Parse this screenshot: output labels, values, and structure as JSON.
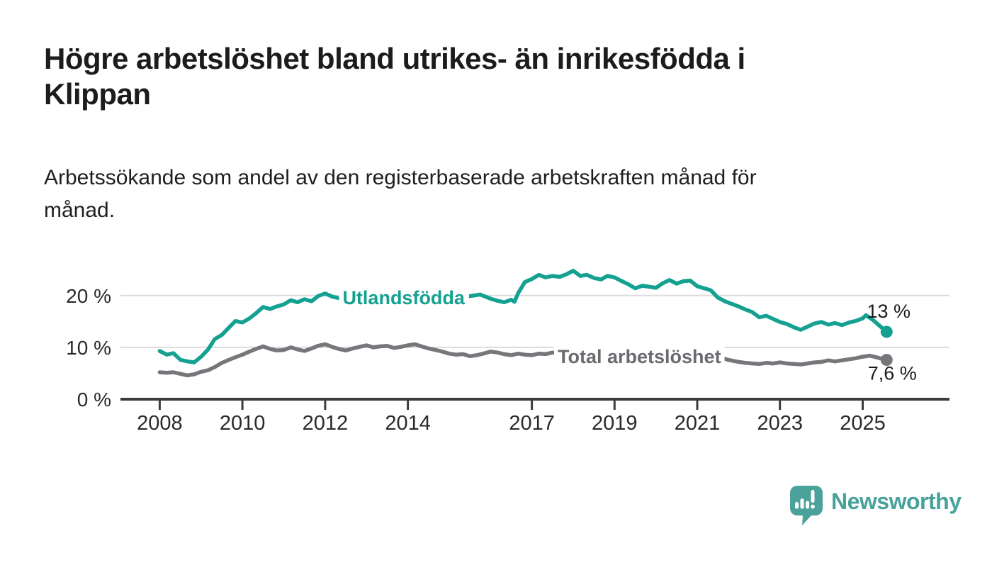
{
  "header": {
    "title_lines": [
      "Högre arbetslöshet bland utrikes- än inrikesfödda i",
      "Klippan"
    ],
    "subtitle_lines": [
      "Arbetssökande som andel av den registerbaserade arbetskraften månad för",
      "månad."
    ]
  },
  "chart_data": {
    "type": "line",
    "title": "Högre arbetslöshet bland utrikes- än inrikesfödda i Klippan",
    "subtitle": "Arbetssökande som andel av den registerbaserade arbetskraften månad för månad.",
    "unit": "%",
    "grid": "horizontal",
    "legend_position": "inline-labels",
    "colors": {
      "grid": "#dcdcdc",
      "axis": "#3c3c3c",
      "tick_text": "#2a2a2a",
      "value_text": "#1c1c1c",
      "background": "#ffffff"
    },
    "x_axis": {
      "range": [
        2007.05,
        2027.1
      ],
      "ticks": [
        2008,
        2010,
        2012,
        2014,
        2017,
        2019,
        2021,
        2023,
        2025
      ],
      "tick_labels": [
        "2008",
        "2010",
        "2012",
        "2014",
        "2017",
        "2019",
        "2021",
        "2023",
        "2025"
      ]
    },
    "y_axis": {
      "range": [
        0,
        26
      ],
      "ticks": [
        0,
        10,
        20
      ],
      "tick_labels": [
        "0 %",
        "10 %",
        "20 %"
      ]
    },
    "series": [
      {
        "name": "Utlandsfödda",
        "color": "#14a191",
        "label": {
          "text": "Utlandsfödda",
          "x": 2013.9,
          "y": 19.6
        },
        "end_value": 13.0,
        "end_label": "13 %",
        "end_label_offset": {
          "dx": 3,
          "dy": -20
        },
        "points": [
          [
            2008.0,
            9.3
          ],
          [
            2008.17,
            8.6
          ],
          [
            2008.33,
            8.9
          ],
          [
            2008.5,
            7.6
          ],
          [
            2008.67,
            7.3
          ],
          [
            2008.83,
            7.1
          ],
          [
            2009.0,
            8.2
          ],
          [
            2009.17,
            9.6
          ],
          [
            2009.33,
            11.6
          ],
          [
            2009.5,
            12.4
          ],
          [
            2009.67,
            13.8
          ],
          [
            2009.83,
            15.1
          ],
          [
            2010.0,
            14.8
          ],
          [
            2010.17,
            15.6
          ],
          [
            2010.33,
            16.6
          ],
          [
            2010.5,
            17.8
          ],
          [
            2010.67,
            17.4
          ],
          [
            2010.83,
            17.9
          ],
          [
            2011.0,
            18.3
          ],
          [
            2011.17,
            19.1
          ],
          [
            2011.33,
            18.7
          ],
          [
            2011.5,
            19.3
          ],
          [
            2011.67,
            18.9
          ],
          [
            2011.83,
            19.9
          ],
          [
            2012.0,
            20.4
          ],
          [
            2012.17,
            19.8
          ],
          [
            2012.33,
            19.5
          ],
          [
            2012.5,
            19.2
          ],
          [
            2012.67,
            19.8
          ],
          [
            2012.83,
            19.5
          ],
          [
            2013.0,
            19.3
          ],
          [
            2013.25,
            19.8
          ],
          [
            2013.5,
            20.1
          ],
          [
            2013.75,
            19.6
          ],
          [
            2014.0,
            19.9
          ],
          [
            2014.25,
            19.5
          ],
          [
            2014.5,
            19.8
          ],
          [
            2014.75,
            19.3
          ],
          [
            2015.0,
            19.1
          ],
          [
            2015.25,
            19.6
          ],
          [
            2015.5,
            19.9
          ],
          [
            2015.75,
            20.2
          ],
          [
            2016.0,
            19.4
          ],
          [
            2016.17,
            19.0
          ],
          [
            2016.33,
            18.7
          ],
          [
            2016.5,
            19.2
          ],
          [
            2016.58,
            18.8
          ],
          [
            2016.67,
            20.5
          ],
          [
            2016.83,
            22.6
          ],
          [
            2017.0,
            23.2
          ],
          [
            2017.17,
            24.0
          ],
          [
            2017.33,
            23.5
          ],
          [
            2017.5,
            23.8
          ],
          [
            2017.67,
            23.6
          ],
          [
            2017.83,
            24.1
          ],
          [
            2018.0,
            24.8
          ],
          [
            2018.17,
            23.8
          ],
          [
            2018.33,
            24.0
          ],
          [
            2018.5,
            23.4
          ],
          [
            2018.67,
            23.1
          ],
          [
            2018.83,
            23.8
          ],
          [
            2019.0,
            23.5
          ],
          [
            2019.17,
            22.8
          ],
          [
            2019.33,
            22.2
          ],
          [
            2019.5,
            21.4
          ],
          [
            2019.67,
            21.9
          ],
          [
            2019.83,
            21.7
          ],
          [
            2020.0,
            21.5
          ],
          [
            2020.17,
            22.4
          ],
          [
            2020.33,
            23.0
          ],
          [
            2020.5,
            22.3
          ],
          [
            2020.67,
            22.8
          ],
          [
            2020.83,
            22.9
          ],
          [
            2021.0,
            21.8
          ],
          [
            2021.17,
            21.4
          ],
          [
            2021.33,
            21.0
          ],
          [
            2021.5,
            19.6
          ],
          [
            2021.67,
            18.9
          ],
          [
            2021.83,
            18.4
          ],
          [
            2022.0,
            17.9
          ],
          [
            2022.17,
            17.3
          ],
          [
            2022.33,
            16.8
          ],
          [
            2022.5,
            15.8
          ],
          [
            2022.67,
            16.1
          ],
          [
            2022.83,
            15.5
          ],
          [
            2023.0,
            14.9
          ],
          [
            2023.17,
            14.5
          ],
          [
            2023.33,
            13.9
          ],
          [
            2023.5,
            13.4
          ],
          [
            2023.67,
            14.0
          ],
          [
            2023.83,
            14.6
          ],
          [
            2024.0,
            14.9
          ],
          [
            2024.17,
            14.4
          ],
          [
            2024.33,
            14.7
          ],
          [
            2024.5,
            14.3
          ],
          [
            2024.67,
            14.8
          ],
          [
            2024.83,
            15.1
          ],
          [
            2025.0,
            15.6
          ],
          [
            2025.08,
            16.2
          ],
          [
            2025.25,
            15.3
          ],
          [
            2025.42,
            14.1
          ],
          [
            2025.58,
            13.0
          ]
        ]
      },
      {
        "name": "Total arbetslöshet",
        "color": "#77777b",
        "label_color": "#6a6a6f",
        "label": {
          "text": "Total arbetslöshet",
          "x": 2019.6,
          "y": 8.2
        },
        "end_value": 7.6,
        "end_label": "7,6 %",
        "end_label_offset": {
          "dx": 8,
          "dy": 28
        },
        "points": [
          [
            2008.0,
            5.2
          ],
          [
            2008.17,
            5.1
          ],
          [
            2008.33,
            5.2
          ],
          [
            2008.5,
            4.9
          ],
          [
            2008.67,
            4.6
          ],
          [
            2008.83,
            4.8
          ],
          [
            2009.0,
            5.3
          ],
          [
            2009.17,
            5.6
          ],
          [
            2009.33,
            6.2
          ],
          [
            2009.5,
            7.0
          ],
          [
            2009.67,
            7.6
          ],
          [
            2009.83,
            8.1
          ],
          [
            2010.0,
            8.6
          ],
          [
            2010.17,
            9.2
          ],
          [
            2010.33,
            9.7
          ],
          [
            2010.5,
            10.2
          ],
          [
            2010.67,
            9.7
          ],
          [
            2010.83,
            9.4
          ],
          [
            2011.0,
            9.5
          ],
          [
            2011.17,
            10.0
          ],
          [
            2011.33,
            9.6
          ],
          [
            2011.5,
            9.3
          ],
          [
            2011.67,
            9.8
          ],
          [
            2011.83,
            10.3
          ],
          [
            2012.0,
            10.6
          ],
          [
            2012.17,
            10.1
          ],
          [
            2012.33,
            9.7
          ],
          [
            2012.5,
            9.4
          ],
          [
            2012.67,
            9.8
          ],
          [
            2012.83,
            10.1
          ],
          [
            2013.0,
            10.4
          ],
          [
            2013.17,
            10.0
          ],
          [
            2013.33,
            10.2
          ],
          [
            2013.5,
            10.3
          ],
          [
            2013.67,
            9.9
          ],
          [
            2013.83,
            10.1
          ],
          [
            2014.0,
            10.4
          ],
          [
            2014.17,
            10.6
          ],
          [
            2014.33,
            10.2
          ],
          [
            2014.5,
            9.8
          ],
          [
            2014.67,
            9.5
          ],
          [
            2014.83,
            9.2
          ],
          [
            2015.0,
            8.8
          ],
          [
            2015.17,
            8.6
          ],
          [
            2015.33,
            8.7
          ],
          [
            2015.5,
            8.3
          ],
          [
            2015.67,
            8.5
          ],
          [
            2015.83,
            8.8
          ],
          [
            2016.0,
            9.2
          ],
          [
            2016.17,
            9.0
          ],
          [
            2016.33,
            8.7
          ],
          [
            2016.5,
            8.5
          ],
          [
            2016.67,
            8.8
          ],
          [
            2016.83,
            8.6
          ],
          [
            2017.0,
            8.5
          ],
          [
            2017.17,
            8.8
          ],
          [
            2017.33,
            8.7
          ],
          [
            2017.5,
            9.0
          ],
          [
            2017.75,
            8.8
          ],
          [
            2018.0,
            9.1
          ],
          [
            2018.25,
            8.7
          ],
          [
            2018.5,
            8.4
          ],
          [
            2018.75,
            8.6
          ],
          [
            2019.0,
            8.3
          ],
          [
            2019.25,
            8.1
          ],
          [
            2019.5,
            8.0
          ],
          [
            2019.75,
            8.3
          ],
          [
            2020.0,
            8.2
          ],
          [
            2020.25,
            9.0
          ],
          [
            2020.5,
            9.4
          ],
          [
            2020.75,
            9.1
          ],
          [
            2021.0,
            8.9
          ],
          [
            2021.25,
            8.6
          ],
          [
            2021.5,
            8.2
          ],
          [
            2021.75,
            7.6
          ],
          [
            2022.0,
            7.2
          ],
          [
            2022.17,
            7.0
          ],
          [
            2022.33,
            6.9
          ],
          [
            2022.5,
            6.8
          ],
          [
            2022.67,
            7.0
          ],
          [
            2022.83,
            6.9
          ],
          [
            2023.0,
            7.1
          ],
          [
            2023.17,
            6.9
          ],
          [
            2023.33,
            6.8
          ],
          [
            2023.5,
            6.7
          ],
          [
            2023.67,
            6.9
          ],
          [
            2023.83,
            7.1
          ],
          [
            2024.0,
            7.2
          ],
          [
            2024.17,
            7.5
          ],
          [
            2024.33,
            7.3
          ],
          [
            2024.5,
            7.5
          ],
          [
            2024.67,
            7.7
          ],
          [
            2024.83,
            7.9
          ],
          [
            2025.0,
            8.2
          ],
          [
            2025.17,
            8.4
          ],
          [
            2025.33,
            8.1
          ],
          [
            2025.42,
            7.9
          ],
          [
            2025.58,
            7.6
          ]
        ]
      }
    ]
  },
  "footer": {
    "brand": "Newsworthy",
    "brand_color": "#46a29a",
    "logo_icon": "bar-chart-speech-bubble"
  }
}
